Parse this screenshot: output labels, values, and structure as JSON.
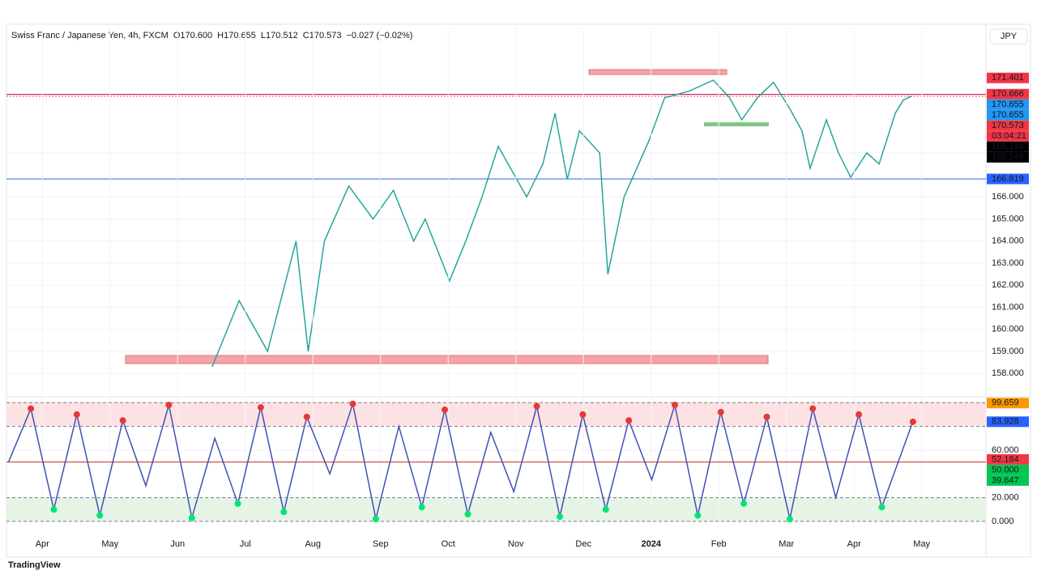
{
  "chart_data": [
    {
      "type": "line",
      "title": "Swiss Franc / Japanese Yen, 4h, FXCM",
      "ohlc": [
        "O170.600",
        "H170.655",
        "L170.512",
        "C170.573",
        "−0.027 (−0.02%)"
      ],
      "currency": "JPY",
      "xlim": [
        -0.53,
        13.95
      ],
      "ylim": [
        157.05,
        173.65
      ],
      "yticks": [
        {
          "value": 158,
          "label": "158.000"
        },
        {
          "value": 159,
          "label": "159.000"
        },
        {
          "value": 160,
          "label": "160.000"
        },
        {
          "value": 161,
          "label": "161.000"
        },
        {
          "value": 162,
          "label": "162.000"
        },
        {
          "value": 163,
          "label": "163.000"
        },
        {
          "value": 164,
          "label": "164.000"
        },
        {
          "value": 165,
          "label": "165.000"
        },
        {
          "value": 166,
          "label": "166.000"
        },
        {
          "value": 168,
          "label": "168.000"
        }
      ],
      "series": [
        {
          "name": "CHFJPY",
          "color": "#26a69a",
          "x": [
            2.51,
            2.91,
            3.33,
            3.75,
            3.93,
            4.17,
            4.53,
            4.89,
            5.19,
            5.49,
            5.66,
            6.02,
            6.26,
            6.5,
            6.74,
            7.16,
            7.4,
            7.58,
            7.76,
            7.94,
            8.24,
            8.36,
            8.6,
            8.96,
            9.2,
            9.56,
            9.92,
            10.16,
            10.34,
            10.57,
            10.81,
            11.05,
            11.23,
            11.35,
            11.59,
            11.77,
            11.95,
            12.19,
            12.37,
            12.61,
            12.73,
            12.85
          ],
          "values": [
            158.3,
            161.3,
            159,
            164,
            159,
            164,
            166.5,
            165,
            166.3,
            164,
            165,
            162.2,
            164,
            166,
            168.3,
            166,
            167.5,
            169.8,
            166.8,
            169,
            168,
            162.5,
            166,
            168.5,
            170.5,
            170.8,
            171.3,
            170.5,
            169.5,
            170.5,
            171.2,
            170,
            169,
            167.3,
            169.5,
            168,
            166.9,
            168,
            167.5,
            169.8,
            170.4,
            170.573
          ]
        }
      ],
      "hlines": [
        {
          "value": 170.655,
          "color": "#c2185b"
        },
        {
          "value": 170.573,
          "color": "#f23645"
        },
        {
          "value": 166.819,
          "color": "#2962ff"
        }
      ],
      "price_labels": [
        {
          "value": 171.401,
          "color": "#f23645"
        },
        {
          "value": 170.666,
          "color": "#f23645"
        },
        {
          "value": 170.655,
          "color": "#2196f3"
        },
        {
          "value": 170.655,
          "color": "#2196f3"
        },
        {
          "value": 170.573,
          "color": "#f23645"
        },
        {
          "value": 169.148,
          "color": "#000000"
        },
        {
          "value": 169.148,
          "color": "#000000"
        },
        {
          "value": 166.819,
          "color": "#2962ff"
        }
      ],
      "countdown": "03:04:21"
    },
    {
      "type": "line",
      "xlim": [
        -0.53,
        13.95
      ],
      "ylim": [
        -5.5,
        102.9
      ],
      "yticks": [
        {
          "value": 0,
          "label": "0.000"
        },
        {
          "value": 20,
          "label": "20.000"
        },
        {
          "value": 60,
          "label": "60.000"
        }
      ],
      "xticks": [
        {
          "value": 0,
          "label": "Apr"
        },
        {
          "value": 1,
          "label": "May"
        },
        {
          "value": 2,
          "label": "Jun"
        },
        {
          "value": 3,
          "label": "Jul"
        },
        {
          "value": 4,
          "label": "Aug"
        },
        {
          "value": 5,
          "label": "Sep"
        },
        {
          "value": 6,
          "label": "Oct"
        },
        {
          "value": 7,
          "label": "Nov"
        },
        {
          "value": 8,
          "label": "Dec"
        },
        {
          "value": 9,
          "label": "2024"
        },
        {
          "value": 10,
          "label": "Feb"
        },
        {
          "value": 11,
          "label": "Mar"
        },
        {
          "value": 12,
          "label": "Apr"
        },
        {
          "value": 13,
          "label": "May"
        }
      ],
      "series": [
        {
          "name": "Stoch",
          "color": "#3f51b5",
          "x": [
            -0.5,
            -0.17,
            0.17,
            0.51,
            0.85,
            1.19,
            1.53,
            1.87,
            2.21,
            2.55,
            2.89,
            3.23,
            3.57,
            3.91,
            4.25,
            4.59,
            4.93,
            5.27,
            5.61,
            5.95,
            6.29,
            6.63,
            6.97,
            7.31,
            7.65,
            7.99,
            8.33,
            8.67,
            9.01,
            9.35,
            9.69,
            10.03,
            10.37,
            10.71,
            11.05,
            11.39,
            11.73,
            12.07,
            12.41,
            12.87
          ],
          "values": [
            50,
            95,
            10,
            90,
            5,
            85,
            30,
            98,
            3,
            70,
            15,
            96,
            8,
            88,
            40,
            99,
            2,
            80,
            12,
            94,
            6,
            75,
            25,
            97,
            4,
            90,
            10,
            85,
            35,
            98,
            5,
            92,
            15,
            88,
            2,
            95,
            20,
            90,
            12,
            83.928
          ]
        }
      ],
      "levels": [
        {
          "value": 100,
          "color": "#787b86"
        },
        {
          "value": 80,
          "color": "#787b86"
        },
        {
          "value": 50,
          "color": "#c62828"
        },
        {
          "value": 20,
          "color": "#787b86"
        },
        {
          "value": 0,
          "color": "#787b86"
        }
      ],
      "price_labels": [
        {
          "value": 99.659,
          "color": "#ff9800"
        },
        {
          "value": 83.928,
          "color": "#2962ff"
        },
        {
          "value": 52.184,
          "color": "#f23645"
        },
        {
          "value": 50,
          "label": "50.000",
          "color": "#00c853"
        },
        {
          "value": 39.647,
          "color": "#00c853"
        }
      ]
    }
  ],
  "footer": "TradingView"
}
